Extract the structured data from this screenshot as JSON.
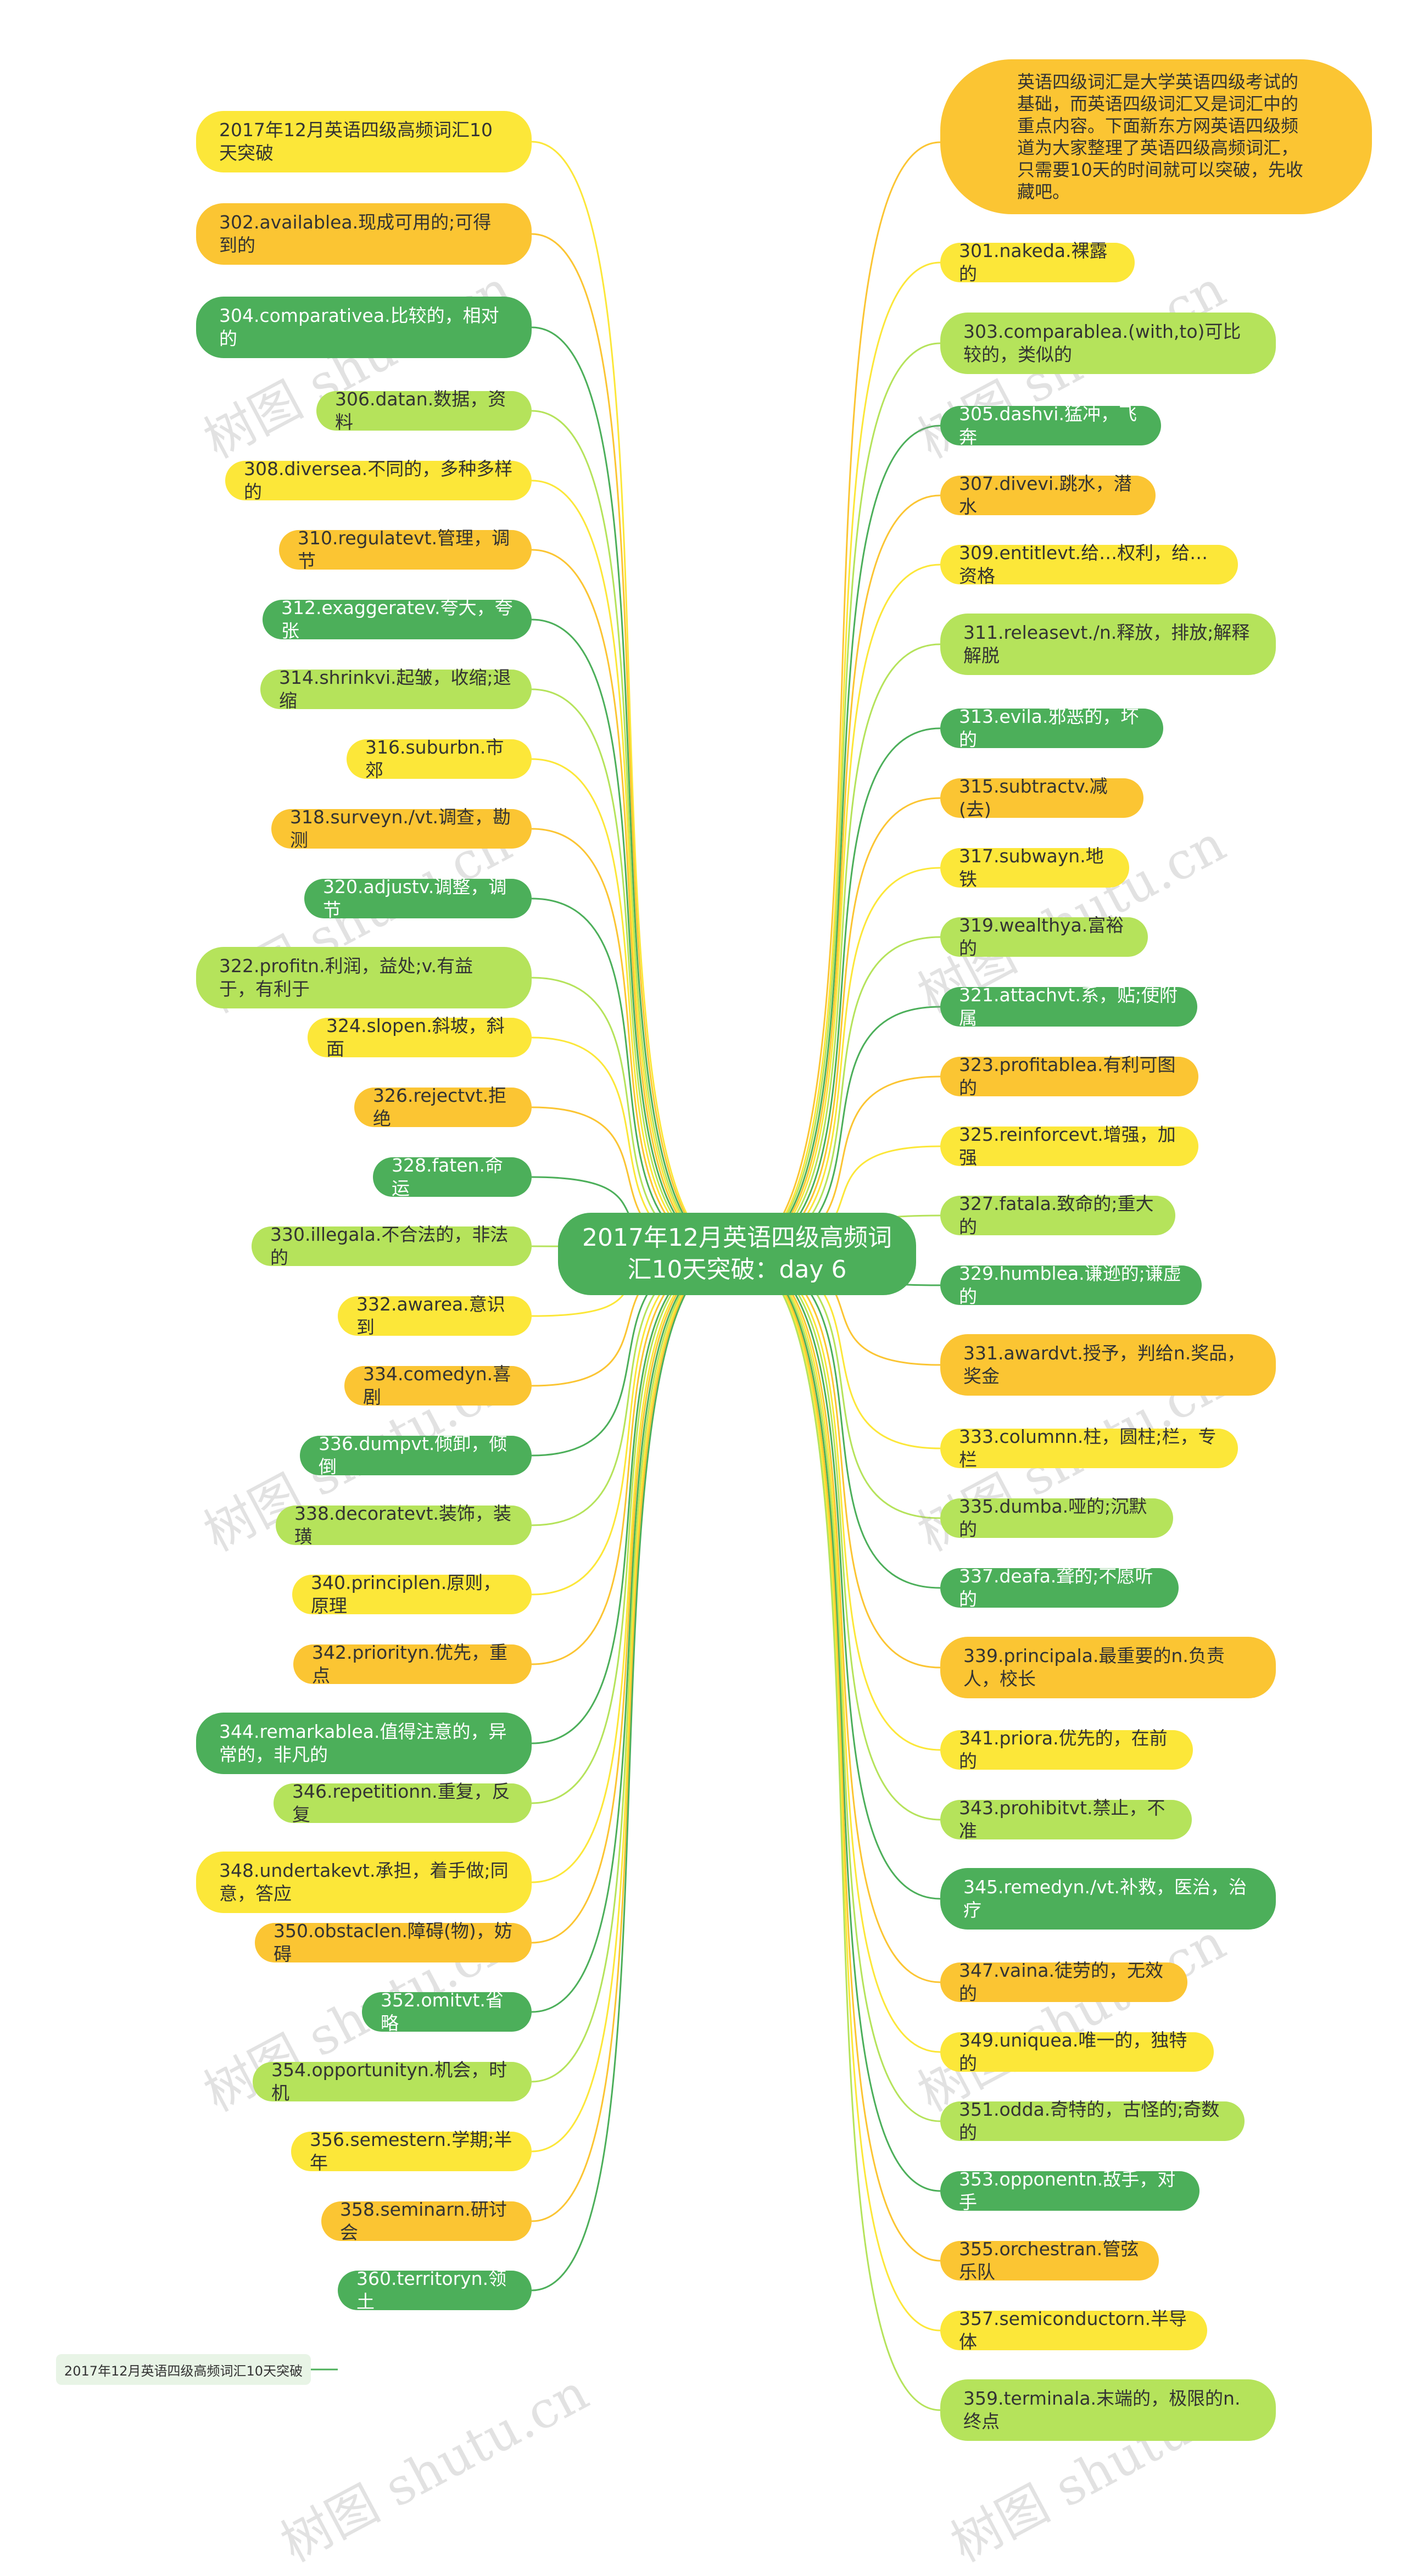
{
  "colors": {
    "green": "#4caf5a",
    "light_green": "#b5e35b",
    "yellow": "#fce739",
    "orange": "#fbc533",
    "tag_bg": "#e8f4e6"
  },
  "center": {
    "label": "2017年12月英语四级高频词汇10天突破：day 6",
    "color": "#4caf5a"
  },
  "intro": {
    "label": "英语四级词汇是大学英语四级考试的基础，而英语四级词汇又是词汇中的重点内容。下面新东方网英语四级频道为大家整理了英语四级高频词汇，只需要10天的时间就可以突破，先收藏吧。",
    "color": "#fbc533"
  },
  "tag": {
    "label": "2017年12月英语四级高频词汇10天突破"
  },
  "watermark": "树图 shutu.cn",
  "left_nodes": [
    {
      "label": "2017年12月英语四级高频词汇10天突破",
      "color": "#fce739"
    },
    {
      "label": "302.availablea.现成可用的;可得到的",
      "color": "#fbc533"
    },
    {
      "label": "304.comparativea.比较的，相对的",
      "color": "#4caf5a"
    },
    {
      "label": "306.datan.数据，资料",
      "color": "#b5e35b"
    },
    {
      "label": "308.diversea.不同的，多种多样的",
      "color": "#fce739"
    },
    {
      "label": "310.regulatevt.管理，调节",
      "color": "#fbc533"
    },
    {
      "label": "312.exaggeratev.夸大，夸张",
      "color": "#4caf5a"
    },
    {
      "label": "314.shrinkvi.起皱，收缩;退缩",
      "color": "#b5e35b"
    },
    {
      "label": "316.suburbn.市郊",
      "color": "#fce739"
    },
    {
      "label": "318.surveyn./vt.调查，勘测",
      "color": "#fbc533"
    },
    {
      "label": "320.adjustv.调整，调节",
      "color": "#4caf5a"
    },
    {
      "label": "322.profitn.利润，益处;v.有益于，有利于",
      "color": "#b5e35b"
    },
    {
      "label": "324.slopen.斜坡，斜面",
      "color": "#fce739"
    },
    {
      "label": "326.rejectvt.拒绝",
      "color": "#fbc533"
    },
    {
      "label": "328.faten.命运",
      "color": "#4caf5a"
    },
    {
      "label": "330.illegala.不合法的，非法的",
      "color": "#b5e35b"
    },
    {
      "label": "332.awarea.意识到",
      "color": "#fce739"
    },
    {
      "label": "334.comedyn.喜剧",
      "color": "#fbc533"
    },
    {
      "label": "336.dumpvt.倾卸，倾倒",
      "color": "#4caf5a"
    },
    {
      "label": "338.decoratevt.装饰，装璜",
      "color": "#b5e35b"
    },
    {
      "label": "340.principlen.原则，原理",
      "color": "#fce739"
    },
    {
      "label": "342.priorityn.优先，重点",
      "color": "#fbc533"
    },
    {
      "label": "344.remarkablea.值得注意的，异常的，非凡的",
      "color": "#4caf5a"
    },
    {
      "label": "346.repetitionn.重复，反复",
      "color": "#b5e35b"
    },
    {
      "label": "348.undertakevt.承担，着手做;同意，答应",
      "color": "#fce739"
    },
    {
      "label": "350.obstaclen.障碍(物)，妨碍",
      "color": "#fbc533"
    },
    {
      "label": "352.omitvt.省略",
      "color": "#4caf5a"
    },
    {
      "label": "354.opportunityn.机会，时机",
      "color": "#b5e35b"
    },
    {
      "label": "356.semestern.学期;半年",
      "color": "#fce739"
    },
    {
      "label": "358.seminarn.研讨会",
      "color": "#fbc533"
    },
    {
      "label": "360.territoryn.领土",
      "color": "#4caf5a"
    }
  ],
  "right_nodes": [
    {
      "label": "301.nakeda.裸露的",
      "color": "#fce739"
    },
    {
      "label": "303.comparablea.(with,to)可比较的，类似的",
      "color": "#b5e35b"
    },
    {
      "label": "305.dashvi.猛冲，飞奔",
      "color": "#4caf5a"
    },
    {
      "label": "307.divevi.跳水，潜水",
      "color": "#fbc533"
    },
    {
      "label": "309.entitlevt.给…权利，给…资格",
      "color": "#fce739"
    },
    {
      "label": "311.releasevt./n.释放，排放;解释解脱",
      "color": "#b5e35b"
    },
    {
      "label": "313.evila.邪恶的，坏的",
      "color": "#4caf5a"
    },
    {
      "label": "315.subtractv.减(去)",
      "color": "#fbc533"
    },
    {
      "label": "317.subwayn.地铁",
      "color": "#fce739"
    },
    {
      "label": "319.wealthya.富裕的",
      "color": "#b5e35b"
    },
    {
      "label": "321.attachvt.系，贴;使附属",
      "color": "#4caf5a"
    },
    {
      "label": "323.profitablea.有利可图的",
      "color": "#fbc533"
    },
    {
      "label": "325.reinforcevt.增强，加强",
      "color": "#fce739"
    },
    {
      "label": "327.fatala.致命的;重大的",
      "color": "#b5e35b"
    },
    {
      "label": "329.humblea.谦逊的;谦虚的",
      "color": "#4caf5a"
    },
    {
      "label": "331.awardvt.授予，判给n.奖品，奖金",
      "color": "#fbc533"
    },
    {
      "label": "333.columnn.柱，圆柱;栏，专栏",
      "color": "#fce739"
    },
    {
      "label": "335.dumba.哑的;沉默的",
      "color": "#b5e35b"
    },
    {
      "label": "337.deafa.聋的;不愿听的",
      "color": "#4caf5a"
    },
    {
      "label": "339.principala.最重要的n.负责人，校长",
      "color": "#fbc533"
    },
    {
      "label": "341.priora.优先的，在前的",
      "color": "#fce739"
    },
    {
      "label": "343.prohibitvt.禁止，不准",
      "color": "#b5e35b"
    },
    {
      "label": "345.remedyn./vt.补救，医治，治疗",
      "color": "#4caf5a"
    },
    {
      "label": "347.vaina.徒劳的，无效的",
      "color": "#fbc533"
    },
    {
      "label": "349.uniquea.唯一的，独特的",
      "color": "#fce739"
    },
    {
      "label": "351.odda.奇特的，古怪的;奇数的",
      "color": "#b5e35b"
    },
    {
      "label": "353.opponentn.敌手，对手",
      "color": "#4caf5a"
    },
    {
      "label": "355.orchestran.管弦乐队",
      "color": "#fbc533"
    },
    {
      "label": "357.semiconductorn.半导体",
      "color": "#fce739"
    },
    {
      "label": "359.terminala.末端的，极限的n.终点",
      "color": "#b5e35b"
    }
  ]
}
